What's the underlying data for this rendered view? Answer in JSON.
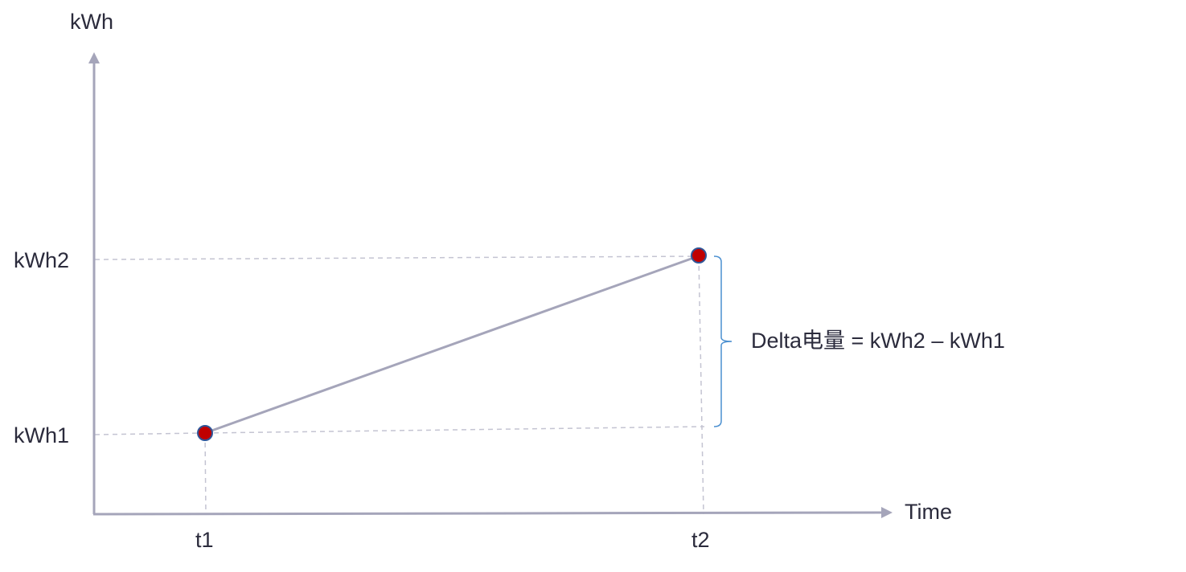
{
  "diagram": {
    "y_axis_label": "kWh",
    "x_axis_label": "Time",
    "y_ticks": [
      "kWh2",
      "kWh1"
    ],
    "x_ticks": [
      "t1",
      "t2"
    ],
    "delta_label": "Delta电量 = kWh2 – kWh1",
    "colors": {
      "axis": "#a5a5ba",
      "guide": "#c4c4d2",
      "line": "#a5a5ba",
      "point_fill": "#c00000",
      "point_stroke": "#2f5597",
      "brace": "#4a8fd0",
      "text": "#2b2b3c"
    }
  }
}
